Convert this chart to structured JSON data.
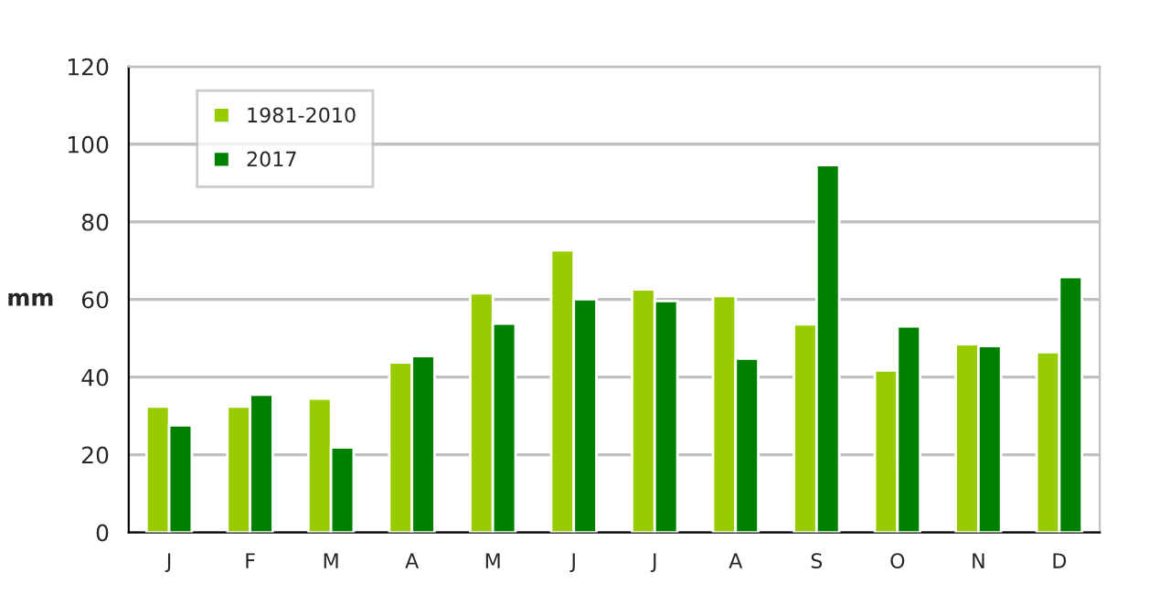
{
  "chart_data": {
    "type": "bar",
    "ylabel": "mm",
    "categories": [
      "J",
      "F",
      "M",
      "A",
      "M",
      "J",
      "J",
      "A",
      "S",
      "O",
      "N",
      "D"
    ],
    "series": [
      {
        "name": "1981-2010",
        "color": "#99cc00",
        "values": [
          32.4,
          32.4,
          34.5,
          43.8,
          61.6,
          72.7,
          62.6,
          60.9,
          53.6,
          41.7,
          48.5,
          46.4
        ]
      },
      {
        "name": "2017",
        "color": "#008000",
        "values": [
          27.6,
          35.5,
          21.9,
          45.4,
          53.8,
          60.1,
          59.6,
          44.8,
          94.6,
          53.1,
          48.0,
          65.8
        ]
      }
    ],
    "ylim": [
      0,
      120
    ],
    "yticks": [
      0,
      20,
      40,
      60,
      80,
      100,
      120
    ],
    "grid": "y",
    "legend": "top left"
  }
}
